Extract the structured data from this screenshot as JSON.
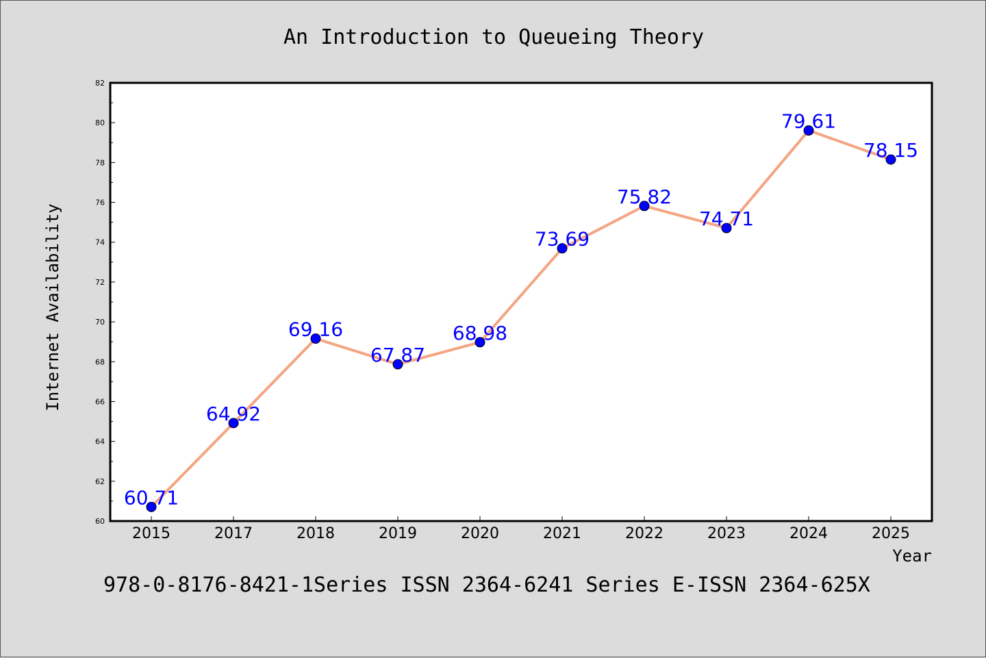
{
  "chart_data": {
    "type": "line",
    "title": "An Introduction to Queueing Theory",
    "xlabel": "Year",
    "ylabel": "Internet Availability",
    "categories": [
      "2015",
      "2017",
      "2018",
      "2019",
      "2020",
      "2021",
      "2022",
      "2023",
      "2024",
      "2025"
    ],
    "series": [
      {
        "values": [
          60.71,
          64.92,
          69.16,
          67.87,
          68.98,
          73.69,
          75.82,
          74.71,
          79.61,
          78.15
        ],
        "data_labels": [
          "60.71",
          "64.92",
          "69.16",
          "67.87",
          "68.98",
          "73.69",
          "75.82",
          "74.71",
          "79.61",
          "78.15"
        ],
        "line_color": "#f4a582",
        "marker_color": "#0000ff",
        "label_color": "#0000ff"
      }
    ],
    "ylim": [
      60,
      82
    ],
    "yticks": [
      "60",
      "62",
      "64",
      "66",
      "68",
      "70",
      "72",
      "74",
      "76",
      "78",
      "80",
      "82"
    ],
    "grid": false,
    "legend": "none"
  },
  "footer": {
    "text": "978-0-8176-8421-1Series ISSN 2364-6241 Series E-ISSN 2364-625X"
  },
  "colors": {
    "background": "#dcdcdc",
    "plot_background": "#ffffff",
    "axis": "#000000"
  }
}
